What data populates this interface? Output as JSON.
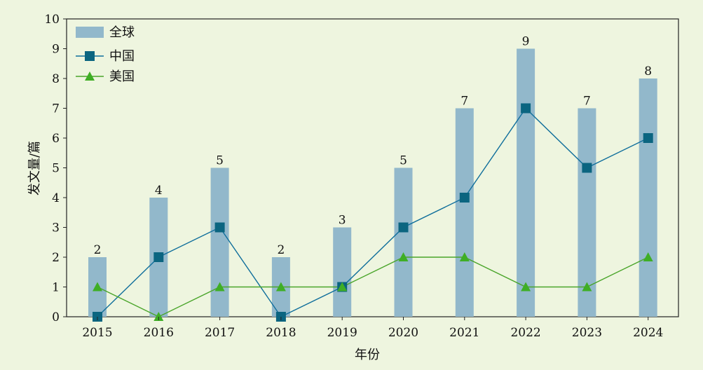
{
  "chart_data": {
    "type": "bar",
    "categories": [
      "2015",
      "2016",
      "2017",
      "2018",
      "2019",
      "2020",
      "2021",
      "2022",
      "2023",
      "2024"
    ],
    "xlabel": "年份",
    "ylabel": "发文量/篇",
    "ylim": [
      0,
      10
    ],
    "yticks": [
      "0",
      "1",
      "2",
      "3",
      "4",
      "5",
      "6",
      "7",
      "8",
      "9",
      "10"
    ],
    "grid": false,
    "legend_position": "top-left",
    "series": [
      {
        "name": "全球",
        "kind": "bar",
        "color": "#92b8cb",
        "values": [
          2,
          4,
          5,
          2,
          3,
          5,
          7,
          9,
          7,
          8
        ],
        "labels": [
          "2",
          "4",
          "5",
          "2",
          "3",
          "5",
          "7",
          "9",
          "7",
          "8"
        ]
      },
      {
        "name": "中国",
        "kind": "line",
        "marker": "square",
        "color": "#0f6e9b",
        "marker_color": "#0b6580",
        "values": [
          0,
          2,
          3,
          0,
          1,
          3,
          4,
          7,
          5,
          6
        ]
      },
      {
        "name": "美国",
        "kind": "line",
        "marker": "triangle",
        "color": "#4aa52a",
        "marker_color": "#3fae25",
        "values": [
          1,
          0,
          1,
          1,
          1,
          2,
          2,
          1,
          1,
          2
        ]
      }
    ]
  }
}
